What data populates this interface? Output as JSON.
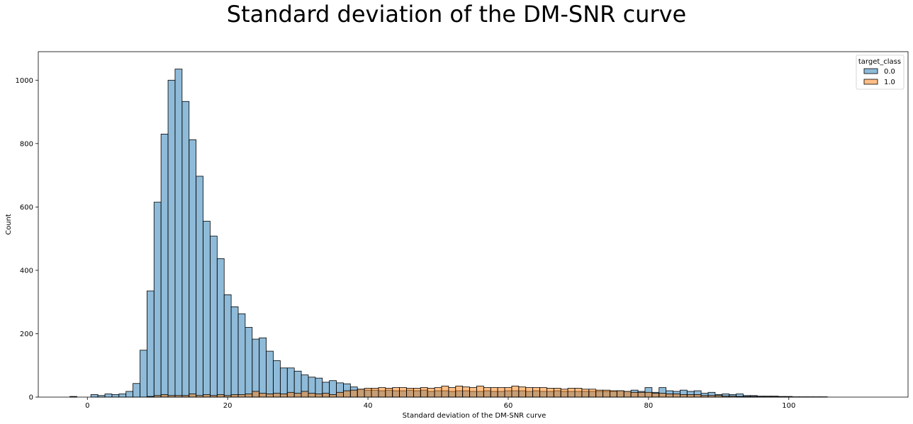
{
  "chart_data": {
    "type": "bar",
    "title": "Standard deviation of the DM-SNR curve",
    "xlabel": "Standard deviation of the DM-SNR curve",
    "ylabel": "Count",
    "xlim": [
      -7,
      117
    ],
    "ylim": [
      0,
      1090
    ],
    "xticks": [
      0,
      20,
      40,
      60,
      80,
      100
    ],
    "yticks": [
      0,
      200,
      400,
      600,
      800,
      1000
    ],
    "grid": false,
    "legend": {
      "title": "target_class",
      "placement": "top-right"
    },
    "bin_start": -2.5,
    "bin_width": 1.0,
    "series": [
      {
        "name": "0.0",
        "color": "#1f77b4",
        "values": [
          2,
          0,
          0,
          8,
          5,
          10,
          8,
          10,
          18,
          43,
          148,
          335,
          615,
          830,
          1000,
          1035,
          933,
          812,
          697,
          555,
          508,
          437,
          323,
          285,
          263,
          220,
          183,
          187,
          145,
          115,
          92,
          92,
          82,
          70,
          63,
          60,
          47,
          52,
          45,
          42,
          32,
          25,
          22,
          22,
          20,
          22,
          20,
          20,
          22,
          20,
          22,
          18,
          20,
          20,
          18,
          20,
          20,
          18,
          18,
          20,
          18,
          18,
          20,
          20,
          20,
          18,
          20,
          18,
          18,
          20,
          18,
          18,
          18,
          18,
          18,
          18,
          18,
          18,
          20,
          18,
          22,
          18,
          30,
          15,
          30,
          20,
          18,
          22,
          18,
          20,
          12,
          15,
          8,
          10,
          8,
          10,
          5,
          5,
          3,
          3,
          3,
          2,
          2,
          1,
          1,
          1,
          1,
          1
        ]
      },
      {
        "name": "1.0",
        "color": "#ff7f0e",
        "values": [
          0,
          0,
          0,
          0,
          0,
          0,
          0,
          0,
          0,
          0,
          0,
          2,
          5,
          8,
          5,
          5,
          5,
          10,
          5,
          8,
          5,
          8,
          5,
          8,
          8,
          10,
          18,
          12,
          10,
          12,
          10,
          15,
          12,
          18,
          12,
          10,
          12,
          8,
          15,
          20,
          22,
          25,
          28,
          28,
          30,
          28,
          30,
          30,
          28,
          28,
          30,
          28,
          30,
          35,
          30,
          35,
          32,
          30,
          35,
          30,
          30,
          30,
          30,
          35,
          32,
          30,
          30,
          30,
          28,
          28,
          25,
          28,
          28,
          25,
          25,
          22,
          22,
          20,
          20,
          18,
          15,
          15,
          15,
          12,
          12,
          10,
          10,
          8,
          8,
          8,
          5,
          5,
          5,
          3,
          3,
          2,
          2,
          2,
          1,
          1,
          1,
          1,
          0,
          0,
          0,
          0,
          0,
          0
        ]
      }
    ]
  }
}
